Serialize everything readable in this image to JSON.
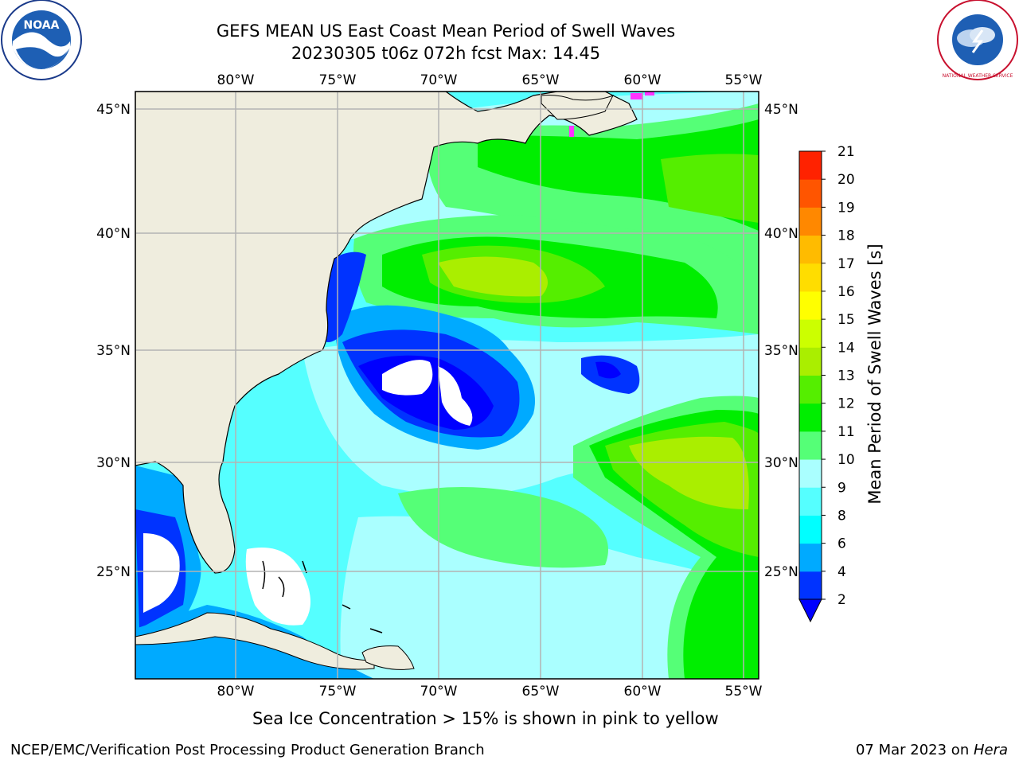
{
  "title": {
    "line1": "GEFS MEAN US East Coast Mean Period of Swell Waves",
    "line2": "20230305 t06z 072h fcst   Max: 14.45"
  },
  "map": {
    "lon_labels": [
      "80°W",
      "75°W",
      "70°W",
      "65°W",
      "60°W",
      "55°W"
    ],
    "lat_labels": [
      "45°N",
      "40°N",
      "35°N",
      "30°N",
      "25°N"
    ],
    "extent": {
      "lon_min": -85,
      "lon_max": -54.2,
      "lat_min": 20.5,
      "lat_max": 46
    }
  },
  "colorbar": {
    "label": "Mean Period of Swell Waves [s]",
    "ticks": [
      "2",
      "4",
      "6",
      "8",
      "9",
      "10",
      "11",
      "12",
      "13",
      "14",
      "15",
      "16",
      "17",
      "18",
      "19",
      "20",
      "21"
    ],
    "colors": [
      "#0033ff",
      "#00aaff",
      "#00ffff",
      "#55ffff",
      "#aaffff",
      "#55ff77",
      "#00ee00",
      "#55ee00",
      "#aaee00",
      "#ccff00",
      "#ffff00",
      "#ffdd00",
      "#ffbb00",
      "#ff8800",
      "#ff5500",
      "#ff2200",
      "#ff0000"
    ],
    "under_color": "#0000ff"
  },
  "footer": {
    "note": "Sea Ice Concentration > 15% is shown in pink to yellow",
    "credit": "NCEP/EMC/Verification Post Processing Product Generation Branch",
    "date": "07 Mar 2023 on ",
    "machine": "Hera"
  },
  "logos": {
    "left": "NOAA",
    "right": "NATIONAL WEATHER SERVICE"
  },
  "colors": {
    "land": "#efedde",
    "grid": "#b3b3b3"
  }
}
